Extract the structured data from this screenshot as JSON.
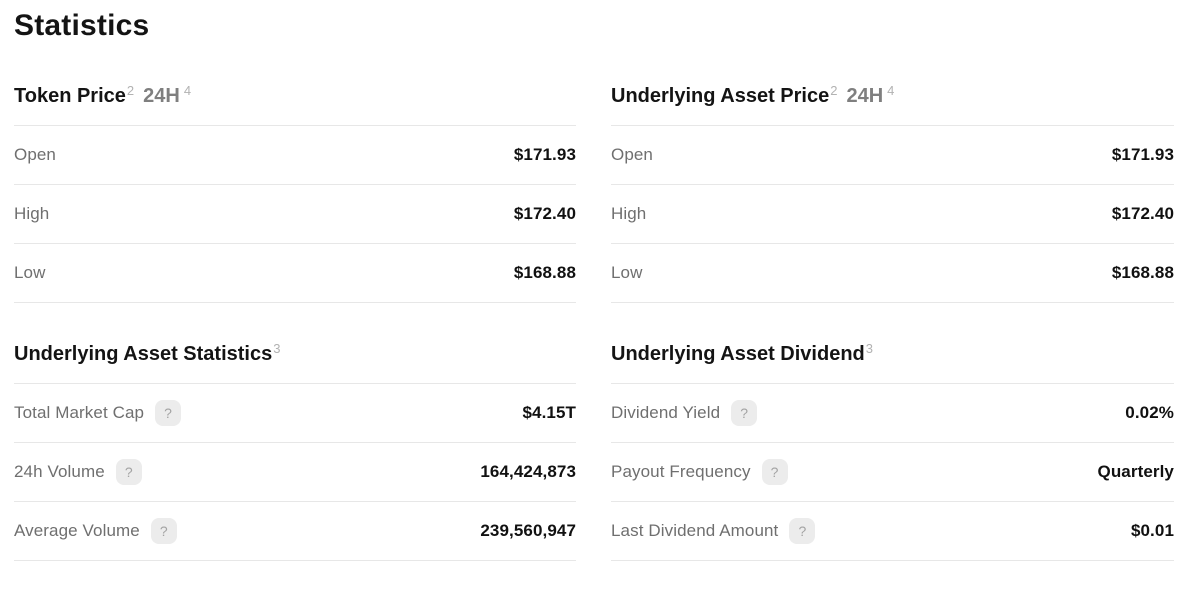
{
  "title": "Statistics",
  "help_icon_glyph": "?",
  "colors": {
    "text_primary": "#141414",
    "text_secondary": "#6f6f6f",
    "text_muted": "#b2b2b2",
    "divider": "#e7e7e7",
    "badge_background": "#ececec"
  },
  "sections": [
    {
      "heading": "Token Price",
      "heading_sup": "2",
      "period": "24H",
      "period_sup": "4",
      "rows": [
        {
          "label": "Open",
          "value": "$171.93"
        },
        {
          "label": "High",
          "value": "$172.40"
        },
        {
          "label": "Low",
          "value": "$168.88"
        }
      ]
    },
    {
      "heading": "Underlying Asset Price",
      "heading_sup": "2",
      "period": "24H",
      "period_sup": "4",
      "rows": [
        {
          "label": "Open",
          "value": "$171.93"
        },
        {
          "label": "High",
          "value": "$172.40"
        },
        {
          "label": "Low",
          "value": "$168.88"
        }
      ]
    },
    {
      "heading": "Underlying Asset Statistics",
      "heading_sup": "3",
      "rows": [
        {
          "label": "Total Market Cap",
          "value": "$4.15T"
        },
        {
          "label": "24h Volume",
          "value": "164,424,873"
        },
        {
          "label": "Average Volume",
          "value": "239,560,947"
        }
      ]
    },
    {
      "heading": "Underlying Asset Dividend",
      "heading_sup": "3",
      "rows": [
        {
          "label": "Dividend Yield",
          "value": "0.02%"
        },
        {
          "label": "Payout Frequency",
          "value": "Quarterly"
        },
        {
          "label": "Last Dividend Amount",
          "value": "$0.01"
        }
      ]
    }
  ]
}
